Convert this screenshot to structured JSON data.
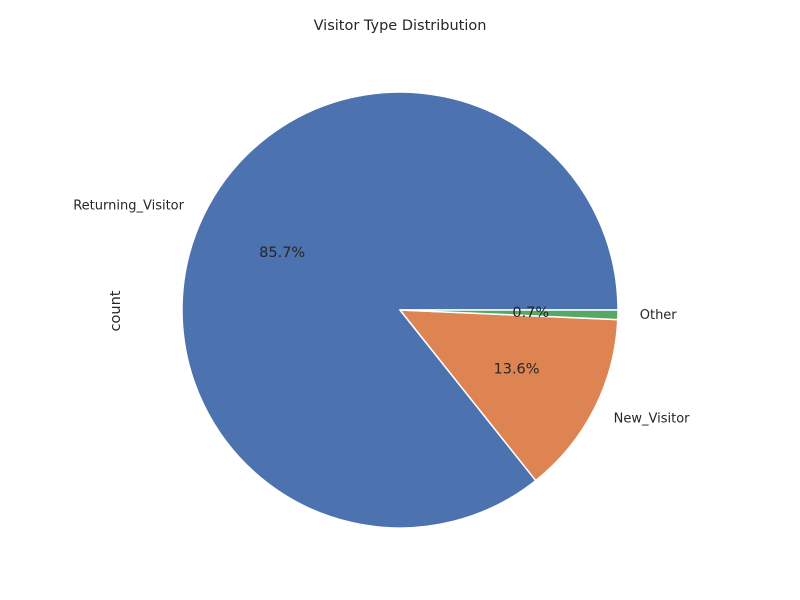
{
  "chart_data": {
    "type": "pie",
    "title": "Visitor Type Distribution",
    "ylabel": "count",
    "categories": [
      "Returning_Visitor",
      "New_Visitor",
      "Other"
    ],
    "values": [
      85.7,
      13.6,
      0.7
    ],
    "percent_labels": [
      "85.7%",
      "13.6%",
      "0.7%"
    ],
    "colors": [
      "#4c72b0",
      "#dd8452",
      "#55a868"
    ],
    "start_angle_deg": 0,
    "direction": "counterclockwise"
  }
}
